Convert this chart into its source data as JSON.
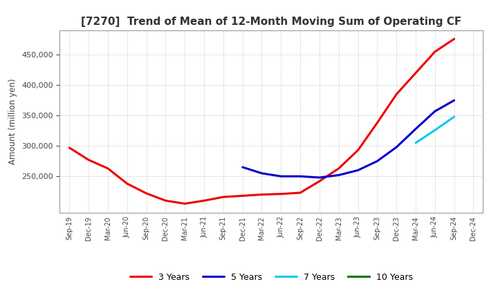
{
  "title": "[7270]  Trend of Mean of 12-Month Moving Sum of Operating CF",
  "ylabel": "Amount (million yen)",
  "background_color": "#ffffff",
  "grid_color": "#aaaaaa",
  "title_fontsize": 11,
  "tick_labels": [
    "Sep-19",
    "Dec-19",
    "Mar-20",
    "Jun-20",
    "Sep-20",
    "Dec-20",
    "Mar-21",
    "Jun-21",
    "Sep-21",
    "Dec-21",
    "Mar-22",
    "Jun-22",
    "Sep-22",
    "Dec-22",
    "Mar-23",
    "Jun-23",
    "Sep-23",
    "Dec-23",
    "Mar-24",
    "Jun-24",
    "Sep-24",
    "Dec-24"
  ],
  "series_3yr": {
    "color": "#ee0000",
    "label": "3 Years",
    "values": [
      297000,
      277000,
      263000,
      238000,
      222000,
      210000,
      205000,
      210000,
      216000,
      218000,
      220000,
      221000,
      223000,
      242000,
      263000,
      293000,
      338000,
      385000,
      420000,
      455000,
      476000,
      null
    ]
  },
  "series_5yr": {
    "color": "#0000cc",
    "label": "5 Years",
    "values": [
      null,
      null,
      null,
      null,
      null,
      null,
      null,
      null,
      null,
      265000,
      255000,
      250000,
      250000,
      248000,
      252000,
      260000,
      275000,
      298000,
      328000,
      357000,
      375000,
      null
    ]
  },
  "series_7yr": {
    "color": "#00ccee",
    "label": "7 Years",
    "values": [
      null,
      null,
      null,
      null,
      null,
      null,
      null,
      null,
      null,
      null,
      null,
      null,
      null,
      null,
      null,
      null,
      null,
      null,
      305000,
      326000,
      348000,
      null
    ]
  },
  "series_10yr": {
    "color": "#007700",
    "label": "10 Years",
    "values": [
      null,
      null,
      null,
      null,
      null,
      null,
      null,
      null,
      null,
      null,
      null,
      null,
      null,
      null,
      null,
      null,
      null,
      null,
      null,
      null,
      null,
      null
    ]
  },
  "ylim": [
    190000,
    490000
  ],
  "yticks": [
    250000,
    300000,
    350000,
    400000,
    450000
  ],
  "linewidth": 2.2
}
